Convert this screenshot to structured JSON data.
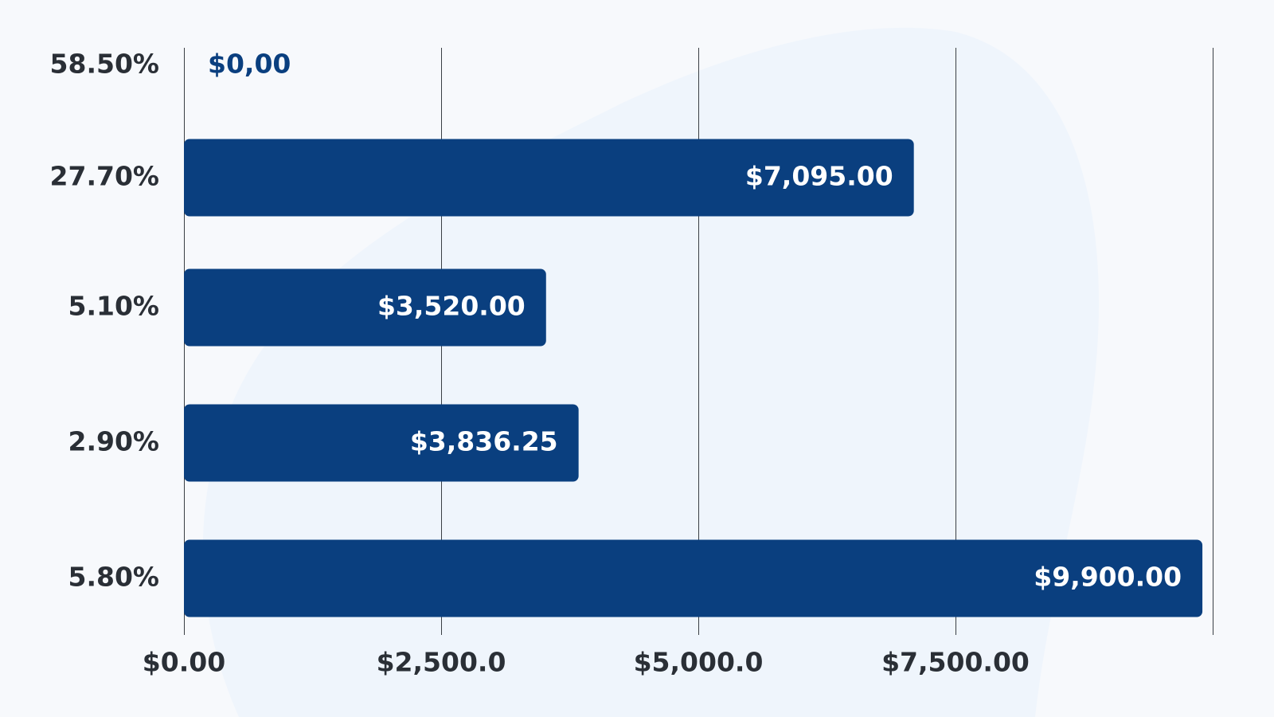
{
  "colors": {
    "bar": "#0a3f7f",
    "outside_label": "#0a3f7f",
    "background": "#f7f9fc",
    "background_blob": "#eaf2fb",
    "text": "#2a2f36",
    "grid": "#3a3f45"
  },
  "chart_data": {
    "type": "bar",
    "orientation": "horizontal",
    "title": "",
    "xlabel": "",
    "ylabel": "",
    "categories": [
      "58.50%",
      "27.70%",
      "5.10%",
      "2.90%",
      "5.80%"
    ],
    "values": [
      0,
      7095,
      3520,
      3836.25,
      9900
    ],
    "value_labels": [
      "$0,00",
      "$7,095.00",
      "$3,520.00",
      "$3,836.25",
      "$9,900.00"
    ],
    "xlim": [
      0,
      10000
    ],
    "xticks": [
      0,
      2500,
      5000,
      7500,
      10000
    ],
    "xtick_labels": [
      "$0.00",
      "$2,500.0",
      "$5,000.0",
      "$7,500.00",
      ""
    ],
    "grid": true,
    "legend": "none"
  }
}
